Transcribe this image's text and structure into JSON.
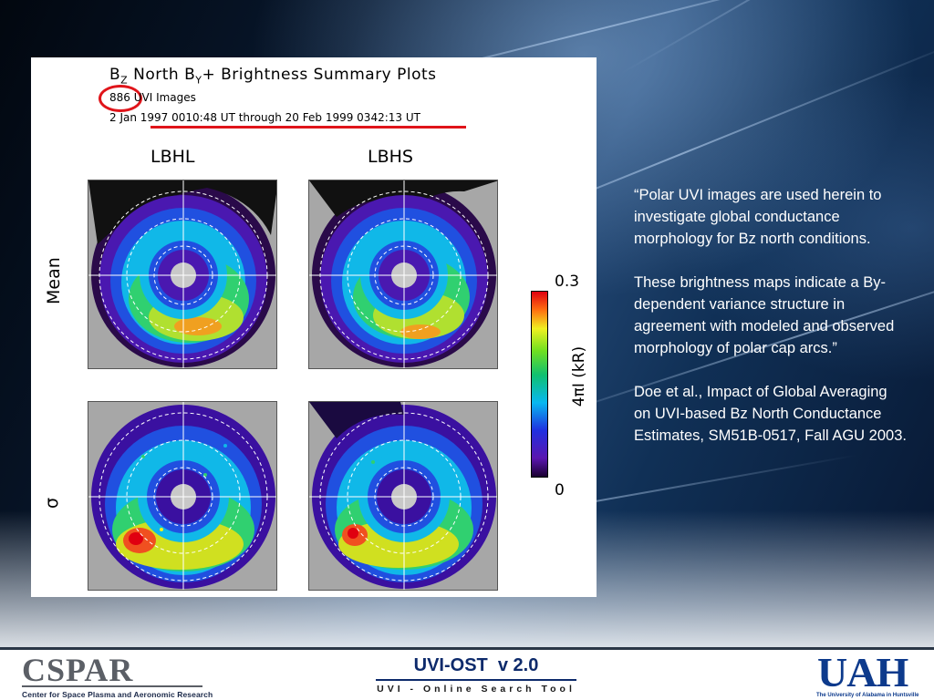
{
  "figure": {
    "title_prefix": "B",
    "title_sub_z": "Z",
    "title_mid": " North B",
    "title_sub_y": "Y",
    "title_suffix": "+ Brightness Summary Plots",
    "image_count": "886",
    "image_count_label": "UVI Images",
    "date_range": "2 Jan 1997 0010:48 UT through 20 Feb 1999 0342:13 UT",
    "columns": [
      "LBHL",
      "LBHS"
    ],
    "rows": [
      "Mean",
      "σ"
    ],
    "colorbar": {
      "max_label": "0.3",
      "min_label": "0",
      "axis_label": "4πI (kR)"
    }
  },
  "quote": {
    "paragraph_1": "“Polar UVI images are used herein to investigate global conductance morphology for Bz north conditions.",
    "paragraph_2": "These brightness maps indicate a By-dependent variance structure in agreement with modeled and observed morphology of polar cap arcs.”",
    "paragraph_3": "Doe et al., Impact of Global Averaging on UVI-based Bz North Conductance Estimates, SM51B-0517, Fall AGU 2003."
  },
  "footer": {
    "cspar_logo": "CSPAR",
    "cspar_subtitle": "Center for Space Plasma and Aeronomic Research",
    "uviost_title": "UVI-OST  v 2.0",
    "uviost_subtitle": "UVI - Online Search Tool",
    "uah_logo": "UAH",
    "uah_subtitle": "The University of Alabama in Huntsville"
  },
  "colors": {
    "highlight_red": "#e0141a",
    "footer_blue": "#0d2a6b",
    "uah_blue": "#0d3a8c",
    "cspar_gray": "#5b5f66"
  }
}
